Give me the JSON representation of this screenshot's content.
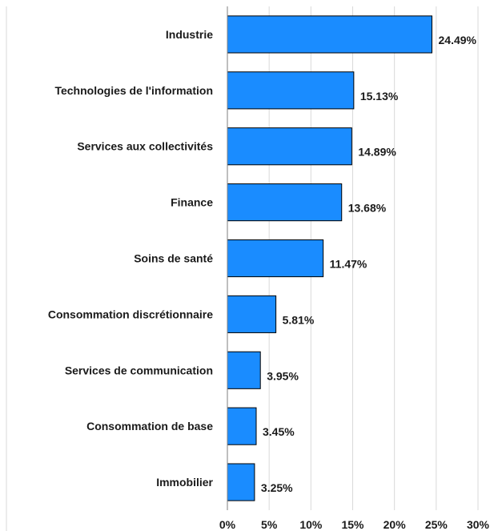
{
  "chart_data": {
    "type": "bar",
    "orientation": "horizontal",
    "categories": [
      "Industrie",
      "Technologies de l'information",
      "Services aux collectivités",
      "Finance",
      "Soins de santé",
      "Consommation discrétionnaire",
      "Services de communication",
      "Consommation de base",
      "Immobilier"
    ],
    "values": [
      24.49,
      15.13,
      14.89,
      13.68,
      11.47,
      5.81,
      3.95,
      3.45,
      3.25
    ],
    "value_labels": [
      "24.49%",
      "15.13%",
      "14.89%",
      "13.68%",
      "11.47%",
      "5.81%",
      "3.95%",
      "3.45%",
      "3.25%"
    ],
    "xlim": [
      0,
      30
    ],
    "x_ticks": [
      0,
      5,
      10,
      15,
      20,
      25,
      30
    ],
    "x_tick_labels": [
      "0%",
      "5%",
      "10%",
      "15%",
      "20%",
      "25%",
      "30%"
    ],
    "grid": true,
    "title": "",
    "xlabel": "",
    "ylabel": "",
    "colors": {
      "bar_fill": "#1a8cff",
      "bar_stroke": "#000000",
      "gridline": "#d9d9d9",
      "axis": "#7f7f7f"
    }
  }
}
